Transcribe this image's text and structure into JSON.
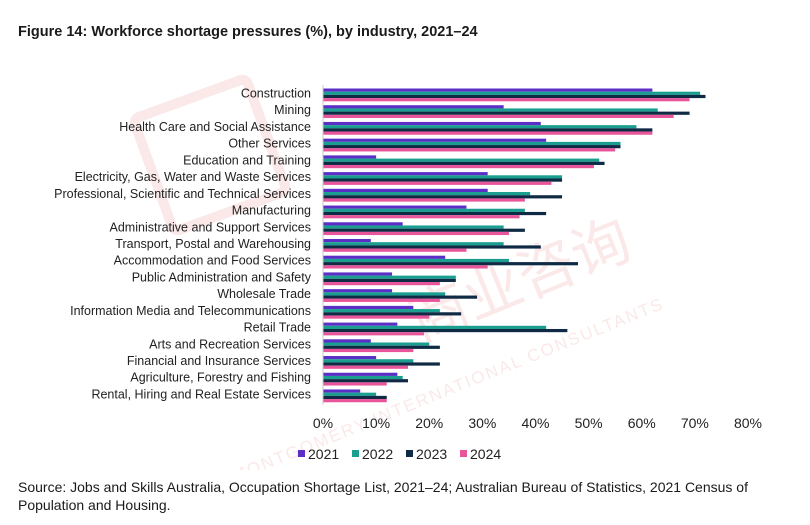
{
  "title": "Figure 14: Workforce shortage pressures (%), by industry, 2021–24",
  "source": "Source: Jobs and Skills Australia, Occupation Shortage List, 2021–24; Australian Bureau of Statistics, 2021 Census of Population and Housing.",
  "watermark": {
    "line1": "MONTGOMERY INTERNATIONAL CONSULTANTS",
    "line2": "商业咨询",
    "color": "#d9534f"
  },
  "chart_data": {
    "type": "bar",
    "orientation": "horizontal",
    "categories": [
      "Construction",
      "Mining",
      "Health Care and Social Assistance",
      "Other Services",
      "Education and Training",
      "Electricity, Gas, Water and Waste Services",
      "Professional, Scientific and Technical Services",
      "Manufacturing",
      "Administrative and Support Services",
      "Transport, Postal and Warehousing",
      "Accommodation and Food Services",
      "Public Administration and Safety",
      "Wholesale Trade",
      "Information Media and Telecommunications",
      "Retail Trade",
      "Arts and Recreation Services",
      "Financial and Insurance Services",
      "Agriculture, Forestry and Fishing",
      "Rental, Hiring and Real Estate Services"
    ],
    "series": [
      {
        "name": "2021",
        "color": "#5b2fc7",
        "values": [
          62,
          34,
          41,
          42,
          10,
          31,
          31,
          27,
          15,
          9,
          23,
          13,
          13,
          17,
          14,
          9,
          10,
          14,
          7
        ]
      },
      {
        "name": "2022",
        "color": "#1a9e8f",
        "values": [
          71,
          63,
          59,
          56,
          52,
          45,
          39,
          38,
          34,
          34,
          35,
          25,
          23,
          22,
          42,
          20,
          17,
          15,
          10
        ]
      },
      {
        "name": "2023",
        "color": "#0f2a45",
        "values": [
          72,
          69,
          62,
          56,
          53,
          45,
          45,
          42,
          38,
          41,
          48,
          25,
          29,
          26,
          46,
          22,
          22,
          16,
          12
        ]
      },
      {
        "name": "2024",
        "color": "#e8559a",
        "values": [
          69,
          66,
          62,
          55,
          51,
          43,
          38,
          37,
          35,
          27,
          31,
          22,
          22,
          20,
          19,
          17,
          16,
          12,
          12
        ]
      }
    ],
    "xlim": [
      0,
      80
    ],
    "xticks": [
      "0%",
      "10%",
      "20%",
      "30%",
      "40%",
      "50%",
      "60%",
      "70%",
      "80%"
    ],
    "xtick_values": [
      0,
      10,
      20,
      30,
      40,
      50,
      60,
      70,
      80
    ],
    "legend_position": "bottom",
    "grid": false
  }
}
